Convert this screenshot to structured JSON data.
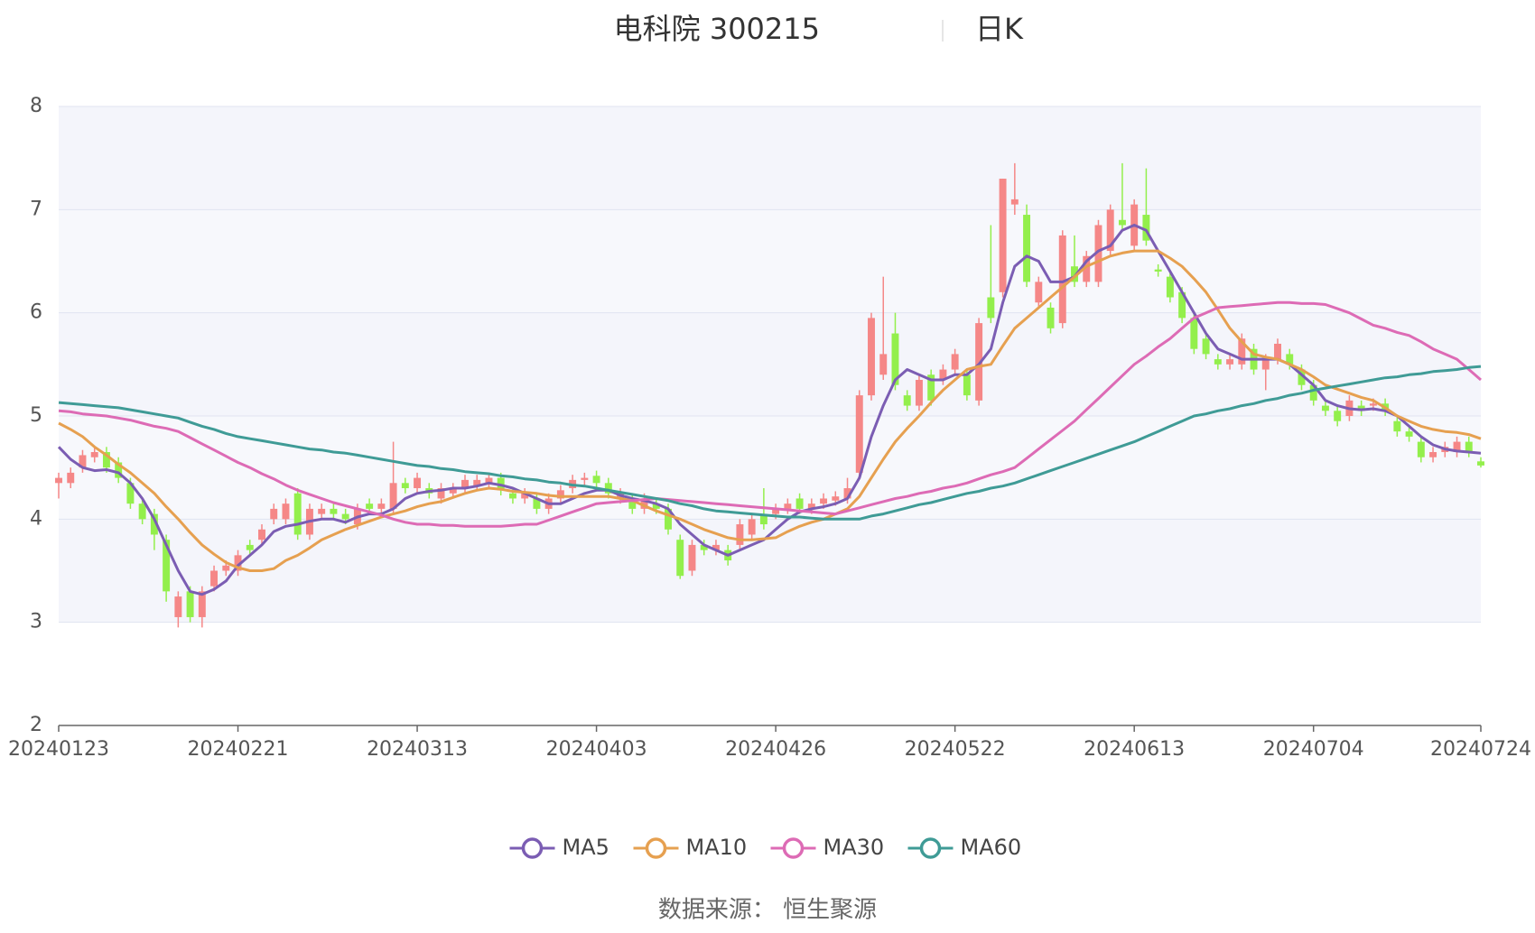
{
  "chart_data": {
    "type": "candlestick",
    "title": "电科院 300215",
    "subtitle": "日K",
    "source": "数据来源：  恒生聚源",
    "up_color": "#f58787",
    "down_color": "#93ef4c",
    "grid": true,
    "legend": "bottom",
    "ylim": [
      2,
      8
    ],
    "yticks": [
      2,
      3,
      4,
      5,
      6,
      7,
      8
    ],
    "categories": [
      "20240123",
      "20240124",
      "20240125",
      "20240126",
      "20240129",
      "20240130",
      "20240131",
      "20240201",
      "20240202",
      "20240205",
      "20240206",
      "20240207",
      "20240208",
      "20240219",
      "20240220",
      "20240221",
      "20240222",
      "20240223",
      "20240226",
      "20240227",
      "20240228",
      "20240229",
      "20240301",
      "20240304",
      "20240305",
      "20240306",
      "20240307",
      "20240308",
      "20240311",
      "20240312",
      "20240313",
      "20240314",
      "20240315",
      "20240318",
      "20240319",
      "20240320",
      "20240321",
      "20240322",
      "20240325",
      "20240326",
      "20240327",
      "20240328",
      "20240329",
      "20240401",
      "20240402",
      "20240403",
      "20240408",
      "20240409",
      "20240410",
      "20240411",
      "20240412",
      "20240415",
      "20240416",
      "20240417",
      "20240418",
      "20240419",
      "20240422",
      "20240423",
      "20240424",
      "20240425",
      "20240426",
      "20240429",
      "20240430",
      "20240506",
      "20240507",
      "20240508",
      "20240509",
      "20240510",
      "20240513",
      "20240514",
      "20240515",
      "20240516",
      "20240517",
      "20240520",
      "20240521",
      "20240522",
      "20240523",
      "20240524",
      "20240527",
      "20240528",
      "20240529",
      "20240530",
      "20240531",
      "20240603",
      "20240604",
      "20240605",
      "20240606",
      "20240607",
      "20240611",
      "20240612",
      "20240613",
      "20240614",
      "20240617",
      "20240618",
      "20240619",
      "20240620",
      "20240621",
      "20240624",
      "20240625",
      "20240626",
      "20240627",
      "20240628",
      "20240701",
      "20240702",
      "20240703",
      "20240704",
      "20240705",
      "20240708",
      "20240709",
      "20240710",
      "20240711",
      "20240712",
      "20240715",
      "20240716",
      "20240717",
      "20240718",
      "20240719",
      "20240722",
      "20240723",
      "20240724"
    ],
    "open": [
      4.35,
      4.35,
      4.5,
      4.6,
      4.65,
      4.55,
      4.35,
      4.15,
      4.05,
      3.8,
      3.05,
      3.3,
      3.05,
      3.35,
      3.5,
      3.5,
      3.75,
      3.8,
      4.0,
      4.0,
      4.25,
      3.85,
      4.05,
      4.1,
      4.05,
      3.95,
      4.15,
      4.1,
      4.1,
      4.35,
      4.3,
      4.3,
      4.2,
      4.25,
      4.3,
      4.32,
      4.35,
      4.4,
      4.25,
      4.2,
      4.2,
      4.1,
      4.2,
      4.3,
      4.38,
      4.42,
      4.35,
      4.2,
      4.2,
      4.1,
      4.15,
      4.1,
      3.8,
      3.5,
      3.75,
      3.7,
      3.7,
      3.75,
      3.85,
      4.05,
      4.05,
      4.1,
      4.2,
      4.1,
      4.15,
      4.18,
      4.2,
      4.45,
      5.2,
      5.4,
      5.8,
      5.2,
      5.1,
      5.4,
      5.35,
      5.45,
      5.4,
      5.15,
      6.15,
      6.2,
      7.05,
      6.95,
      6.1,
      6.05,
      5.9,
      6.45,
      6.3,
      6.3,
      6.6,
      6.9,
      6.65,
      6.95,
      6.42,
      6.35,
      6.2,
      5.95,
      5.75,
      5.55,
      5.5,
      5.5,
      5.65,
      5.45,
      5.55,
      5.6,
      5.45,
      5.3,
      5.1,
      5.05,
      5.0,
      5.1,
      5.1,
      5.12,
      4.95,
      4.85,
      4.75,
      4.6,
      4.65,
      4.65,
      4.75,
      4.56
    ],
    "close": [
      4.4,
      4.45,
      4.62,
      4.65,
      4.5,
      4.4,
      4.15,
      4.0,
      3.85,
      3.3,
      3.25,
      3.05,
      3.3,
      3.5,
      3.55,
      3.65,
      3.7,
      3.9,
      4.1,
      4.15,
      3.85,
      4.1,
      4.1,
      4.05,
      4.0,
      4.1,
      4.1,
      4.15,
      4.35,
      4.3,
      4.4,
      4.25,
      4.3,
      4.3,
      4.38,
      4.38,
      4.4,
      4.28,
      4.2,
      4.25,
      4.1,
      4.2,
      4.28,
      4.38,
      4.4,
      4.35,
      4.25,
      4.25,
      4.1,
      4.2,
      4.1,
      3.9,
      3.45,
      3.75,
      3.7,
      3.75,
      3.6,
      3.95,
      4.0,
      3.95,
      4.1,
      4.15,
      4.1,
      4.15,
      4.2,
      4.22,
      4.3,
      5.2,
      5.95,
      5.6,
      5.3,
      5.1,
      5.35,
      5.15,
      5.45,
      5.6,
      5.2,
      5.9,
      5.95,
      7.3,
      7.1,
      6.3,
      6.3,
      5.85,
      6.75,
      6.3,
      6.55,
      6.85,
      7.0,
      6.85,
      7.05,
      6.7,
      6.4,
      6.15,
      5.95,
      5.65,
      5.6,
      5.5,
      5.55,
      5.75,
      5.45,
      5.55,
      5.7,
      5.5,
      5.3,
      5.15,
      5.05,
      4.95,
      5.15,
      5.05,
      5.12,
      5.05,
      4.85,
      4.8,
      4.6,
      4.65,
      4.7,
      4.75,
      4.65,
      4.52
    ],
    "low": [
      4.2,
      4.3,
      4.45,
      4.55,
      4.45,
      4.35,
      4.1,
      3.95,
      3.7,
      3.2,
      2.95,
      3.0,
      2.95,
      3.3,
      3.45,
      3.45,
      3.65,
      3.75,
      3.95,
      3.95,
      3.8,
      3.8,
      4.0,
      4.0,
      3.95,
      3.9,
      4.05,
      4.05,
      4.05,
      4.25,
      4.25,
      4.2,
      4.15,
      4.2,
      4.25,
      4.27,
      4.3,
      4.23,
      4.15,
      4.15,
      4.05,
      4.05,
      4.15,
      4.25,
      4.33,
      4.3,
      4.2,
      4.15,
      4.05,
      4.05,
      4.05,
      3.85,
      3.42,
      3.45,
      3.65,
      3.65,
      3.55,
      3.7,
      3.8,
      3.9,
      4.0,
      4.05,
      4.05,
      4.05,
      4.1,
      4.13,
      4.15,
      4.4,
      5.15,
      5.35,
      5.25,
      5.05,
      5.05,
      5.1,
      5.3,
      5.4,
      5.15,
      5.1,
      5.9,
      6.15,
      6.95,
      6.25,
      6.05,
      5.8,
      5.85,
      6.25,
      6.25,
      6.25,
      6.55,
      6.8,
      6.6,
      6.65,
      6.35,
      6.1,
      5.9,
      5.6,
      5.55,
      5.45,
      5.45,
      5.45,
      5.4,
      5.25,
      5.5,
      5.45,
      5.25,
      5.1,
      5.0,
      4.9,
      4.95,
      5.0,
      5.05,
      5.0,
      4.8,
      4.75,
      4.55,
      4.55,
      4.6,
      4.6,
      4.6,
      4.5
    ],
    "high": [
      4.45,
      4.5,
      4.67,
      4.7,
      4.7,
      4.6,
      4.4,
      4.2,
      4.1,
      3.85,
      3.3,
      3.35,
      3.35,
      3.55,
      3.6,
      3.7,
      3.8,
      3.95,
      4.15,
      4.2,
      4.3,
      4.15,
      4.15,
      4.15,
      4.1,
      4.15,
      4.2,
      4.2,
      4.75,
      4.4,
      4.45,
      4.35,
      4.35,
      4.35,
      4.43,
      4.43,
      4.45,
      4.45,
      4.3,
      4.3,
      4.25,
      4.25,
      4.33,
      4.43,
      4.45,
      4.47,
      4.4,
      4.3,
      4.25,
      4.25,
      4.2,
      4.15,
      3.85,
      3.8,
      3.8,
      3.8,
      3.75,
      4.0,
      4.05,
      4.3,
      4.15,
      4.2,
      4.25,
      4.2,
      4.25,
      4.27,
      4.4,
      5.25,
      6.0,
      6.35,
      6.0,
      5.25,
      5.4,
      5.45,
      5.5,
      5.65,
      5.45,
      5.95,
      6.85,
      7.3,
      7.45,
      7.05,
      6.35,
      6.1,
      6.8,
      6.75,
      6.6,
      6.9,
      7.05,
      7.45,
      7.1,
      7.4,
      6.47,
      6.4,
      6.25,
      6.0,
      5.8,
      5.6,
      5.6,
      5.8,
      5.7,
      5.6,
      5.75,
      5.65,
      5.5,
      5.35,
      5.15,
      5.1,
      5.2,
      5.15,
      5.17,
      5.17,
      5.0,
      4.9,
      4.8,
      4.7,
      4.75,
      4.8,
      4.8,
      4.6
    ],
    "series": [
      {
        "name": "MA5",
        "color": "#7b5db3",
        "values": [
          4.7,
          4.58,
          4.5,
          4.47,
          4.48,
          4.45,
          4.35,
          4.2,
          4.0,
          3.75,
          3.5,
          3.3,
          3.27,
          3.32,
          3.4,
          3.55,
          3.65,
          3.75,
          3.88,
          3.93,
          3.95,
          3.98,
          4.0,
          4.0,
          3.97,
          4.02,
          4.05,
          4.05,
          4.1,
          4.2,
          4.25,
          4.27,
          4.28,
          4.3,
          4.3,
          4.32,
          4.35,
          4.33,
          4.3,
          4.25,
          4.2,
          4.15,
          4.15,
          4.2,
          4.25,
          4.28,
          4.28,
          4.23,
          4.2,
          4.18,
          4.15,
          4.1,
          3.95,
          3.85,
          3.75,
          3.7,
          3.65,
          3.7,
          3.75,
          3.8,
          3.9,
          4.0,
          4.07,
          4.1,
          4.12,
          4.15,
          4.2,
          4.4,
          4.8,
          5.1,
          5.35,
          5.45,
          5.4,
          5.35,
          5.35,
          5.4,
          5.4,
          5.5,
          5.65,
          6.1,
          6.45,
          6.55,
          6.5,
          6.3,
          6.3,
          6.35,
          6.5,
          6.6,
          6.65,
          6.8,
          6.85,
          6.8,
          6.6,
          6.4,
          6.2,
          6.0,
          5.8,
          5.65,
          5.6,
          5.55,
          5.55,
          5.55,
          5.55,
          5.5,
          5.4,
          5.3,
          5.15,
          5.1,
          5.07,
          5.06,
          5.07,
          5.05,
          5.0,
          4.9,
          4.8,
          4.72,
          4.68,
          4.66,
          4.65,
          4.64
        ]
      },
      {
        "name": "MA10",
        "color": "#e6a050",
        "values": [
          4.93,
          4.87,
          4.8,
          4.7,
          4.62,
          4.53,
          4.45,
          4.35,
          4.25,
          4.12,
          4.0,
          3.87,
          3.75,
          3.66,
          3.58,
          3.53,
          3.5,
          3.5,
          3.52,
          3.6,
          3.65,
          3.72,
          3.8,
          3.85,
          3.9,
          3.94,
          3.98,
          4.02,
          4.05,
          4.08,
          4.12,
          4.15,
          4.17,
          4.21,
          4.25,
          4.28,
          4.3,
          4.29,
          4.27,
          4.26,
          4.25,
          4.23,
          4.22,
          4.22,
          4.22,
          4.22,
          4.22,
          4.2,
          4.18,
          4.13,
          4.08,
          4.04,
          4.0,
          3.95,
          3.9,
          3.86,
          3.82,
          3.8,
          3.8,
          3.81,
          3.82,
          3.88,
          3.93,
          3.97,
          4.0,
          4.05,
          4.1,
          4.22,
          4.4,
          4.58,
          4.75,
          4.88,
          5.0,
          5.13,
          5.25,
          5.35,
          5.45,
          5.48,
          5.5,
          5.68,
          5.85,
          5.95,
          6.05,
          6.15,
          6.25,
          6.35,
          6.45,
          6.5,
          6.55,
          6.58,
          6.6,
          6.6,
          6.6,
          6.53,
          6.45,
          6.33,
          6.2,
          6.03,
          5.85,
          5.72,
          5.6,
          5.57,
          5.55,
          5.5,
          5.45,
          5.38,
          5.3,
          5.26,
          5.22,
          5.18,
          5.15,
          5.08,
          5.0,
          4.95,
          4.9,
          4.87,
          4.85,
          4.84,
          4.82,
          4.78
        ]
      },
      {
        "name": "MA30",
        "color": "#dd6bb5",
        "values": [
          5.05,
          5.04,
          5.02,
          5.01,
          5.0,
          4.98,
          4.96,
          4.93,
          4.9,
          4.88,
          4.85,
          4.79,
          4.73,
          4.67,
          4.61,
          4.55,
          4.5,
          4.44,
          4.39,
          4.33,
          4.28,
          4.24,
          4.2,
          4.16,
          4.13,
          4.1,
          4.07,
          4.04,
          4.0,
          3.97,
          3.95,
          3.95,
          3.94,
          3.94,
          3.93,
          3.93,
          3.93,
          3.93,
          3.94,
          3.95,
          3.95,
          3.99,
          4.03,
          4.07,
          4.11,
          4.15,
          4.16,
          4.17,
          4.18,
          4.19,
          4.2,
          4.19,
          4.18,
          4.17,
          4.16,
          4.15,
          4.14,
          4.13,
          4.12,
          4.11,
          4.1,
          4.09,
          4.08,
          4.07,
          4.06,
          4.05,
          4.08,
          4.11,
          4.14,
          4.17,
          4.2,
          4.22,
          4.25,
          4.27,
          4.3,
          4.32,
          4.35,
          4.39,
          4.43,
          4.46,
          4.5,
          4.59,
          4.68,
          4.77,
          4.86,
          4.95,
          5.06,
          5.17,
          5.28,
          5.39,
          5.5,
          5.58,
          5.67,
          5.75,
          5.85,
          5.95,
          6.0,
          6.05,
          6.06,
          6.07,
          6.08,
          6.09,
          6.1,
          6.1,
          6.09,
          6.09,
          6.08,
          6.04,
          6.0,
          5.94,
          5.88,
          5.85,
          5.81,
          5.78,
          5.72,
          5.65,
          5.6,
          5.55,
          5.45,
          5.35
        ]
      },
      {
        "name": "MA60",
        "color": "#3f9b96",
        "values": [
          5.13,
          5.12,
          5.11,
          5.1,
          5.09,
          5.08,
          5.06,
          5.04,
          5.02,
          5.0,
          4.98,
          4.94,
          4.9,
          4.87,
          4.83,
          4.8,
          4.78,
          4.76,
          4.74,
          4.72,
          4.7,
          4.68,
          4.67,
          4.65,
          4.64,
          4.62,
          4.6,
          4.58,
          4.56,
          4.54,
          4.52,
          4.51,
          4.49,
          4.48,
          4.46,
          4.45,
          4.44,
          4.42,
          4.41,
          4.39,
          4.38,
          4.36,
          4.35,
          4.33,
          4.32,
          4.3,
          4.28,
          4.26,
          4.24,
          4.22,
          4.2,
          4.18,
          4.15,
          4.13,
          4.1,
          4.08,
          4.07,
          4.06,
          4.05,
          4.04,
          4.03,
          4.02,
          4.02,
          4.01,
          4.0,
          4.0,
          4.0,
          4.0,
          4.03,
          4.05,
          4.08,
          4.11,
          4.14,
          4.16,
          4.19,
          4.22,
          4.25,
          4.27,
          4.3,
          4.32,
          4.35,
          4.39,
          4.43,
          4.47,
          4.51,
          4.55,
          4.59,
          4.63,
          4.67,
          4.71,
          4.75,
          4.8,
          4.85,
          4.9,
          4.95,
          5.0,
          5.02,
          5.05,
          5.07,
          5.1,
          5.12,
          5.15,
          5.17,
          5.2,
          5.22,
          5.25,
          5.27,
          5.29,
          5.31,
          5.33,
          5.35,
          5.37,
          5.38,
          5.4,
          5.41,
          5.43,
          5.44,
          5.45,
          5.47,
          5.48
        ]
      }
    ]
  }
}
